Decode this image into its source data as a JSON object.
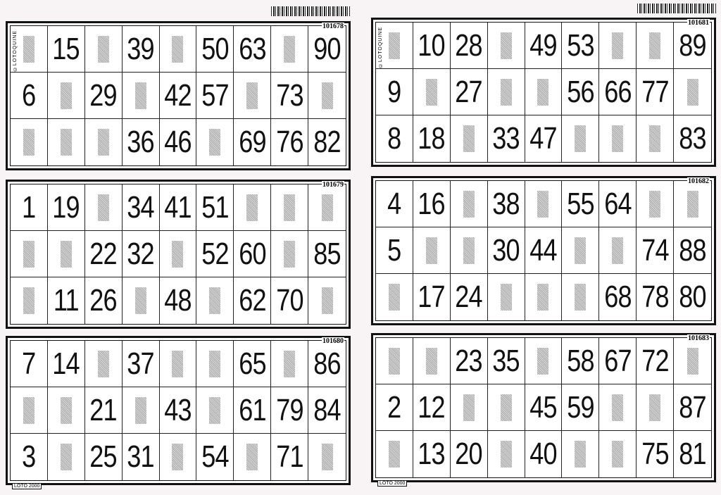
{
  "cards": [
    {
      "id": "101678",
      "brand": "©LOTOQUINE",
      "rows": [
        [
          null,
          15,
          null,
          39,
          null,
          50,
          63,
          null,
          90
        ],
        [
          6,
          null,
          29,
          null,
          42,
          57,
          null,
          73,
          null
        ],
        [
          null,
          null,
          null,
          36,
          46,
          null,
          69,
          76,
          82
        ]
      ]
    },
    {
      "id": "101679",
      "rows": [
        [
          1,
          19,
          null,
          34,
          41,
          51,
          null,
          null,
          null
        ],
        [
          null,
          null,
          22,
          32,
          null,
          52,
          60,
          null,
          85
        ],
        [
          null,
          11,
          26,
          null,
          48,
          null,
          62,
          70,
          null
        ]
      ]
    },
    {
      "id": "101680",
      "footer": "LOTO 2000",
      "rows": [
        [
          7,
          14,
          null,
          37,
          null,
          null,
          65,
          null,
          86
        ],
        [
          null,
          null,
          21,
          null,
          43,
          null,
          61,
          79,
          84
        ],
        [
          3,
          null,
          25,
          31,
          null,
          54,
          null,
          71,
          null
        ]
      ]
    },
    {
      "id": "101681",
      "brand": "©LOTOQUINE",
      "rows": [
        [
          null,
          10,
          28,
          null,
          49,
          53,
          null,
          null,
          89
        ],
        [
          9,
          null,
          27,
          null,
          null,
          56,
          66,
          77,
          null
        ],
        [
          8,
          18,
          null,
          33,
          47,
          null,
          null,
          null,
          83
        ]
      ]
    },
    {
      "id": "101682",
      "rows": [
        [
          4,
          16,
          null,
          38,
          null,
          55,
          64,
          null,
          null
        ],
        [
          5,
          null,
          null,
          30,
          44,
          null,
          null,
          74,
          88
        ],
        [
          null,
          17,
          24,
          null,
          null,
          null,
          68,
          78,
          80
        ]
      ]
    },
    {
      "id": "101683",
      "footer": "LOTO 2000",
      "rows": [
        [
          null,
          null,
          23,
          35,
          null,
          58,
          67,
          72,
          null
        ],
        [
          2,
          12,
          null,
          null,
          45,
          59,
          null,
          null,
          87
        ],
        [
          null,
          13,
          20,
          null,
          40,
          null,
          null,
          75,
          81
        ]
      ]
    }
  ]
}
